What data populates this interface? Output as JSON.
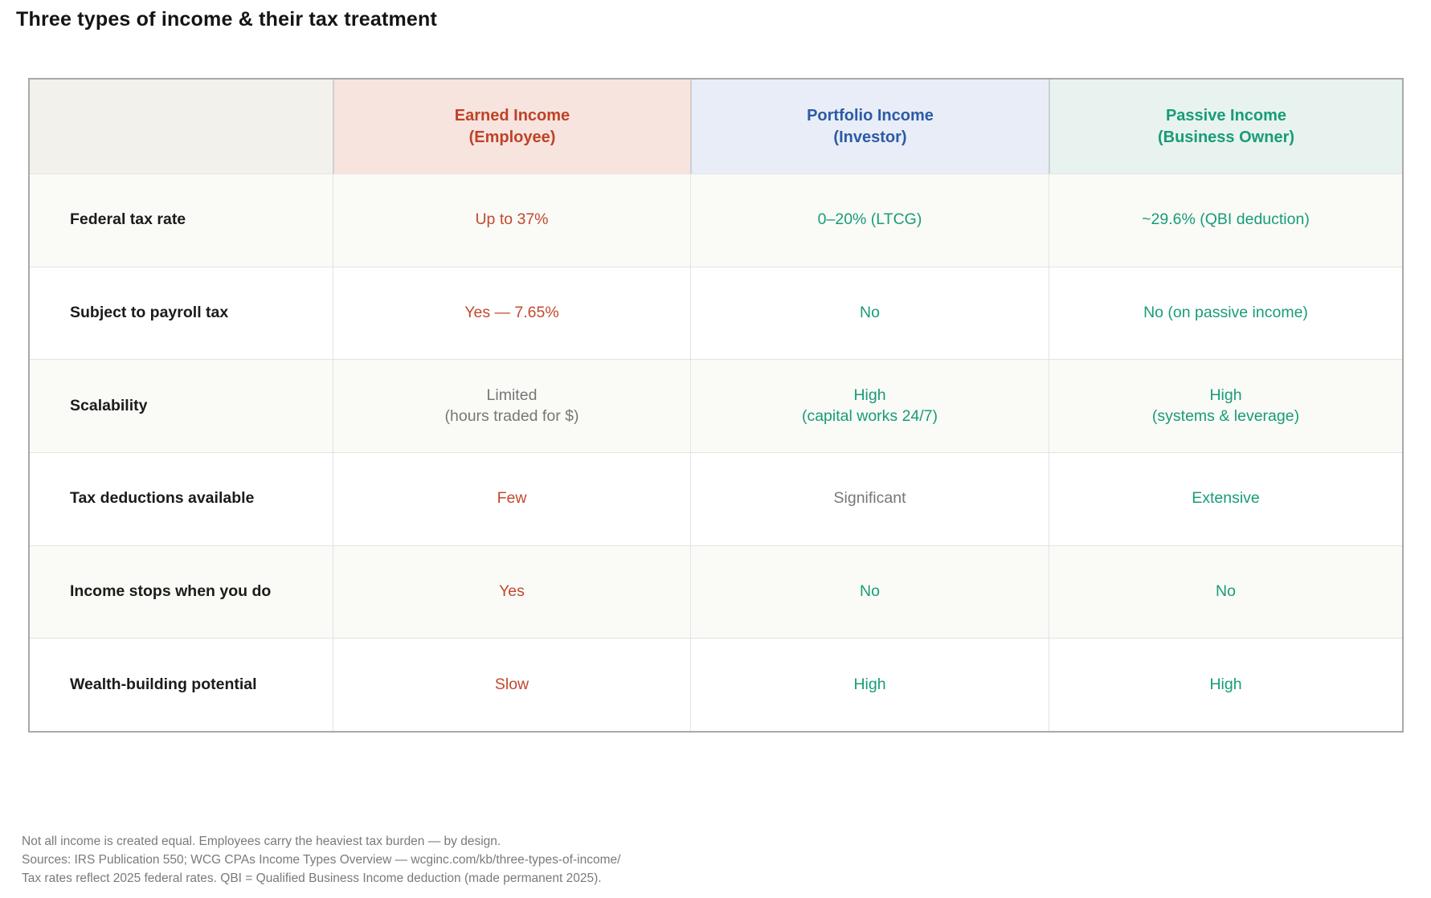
{
  "title": "Three types of income & their tax treatment",
  "colors": {
    "earned_accent": "#bf4226",
    "earned_bg": "#f7e4df",
    "portfolio_accent": "#2b5ba6",
    "portfolio_bg": "#e9edf7",
    "passive_accent": "#189c77",
    "passive_bg": "#e8f3ef",
    "negative": "#c1492e",
    "positive": "#189c77",
    "neutral": "#777777",
    "corner_bg": "#f2f1eb",
    "stripe_bg": "#fafaf7"
  },
  "chart_data": {
    "type": "table",
    "title": "Three types of income & their tax treatment",
    "header": {
      "blank": "",
      "cols": [
        {
          "label": "Earned Income\n(Employee)"
        },
        {
          "label": "Portfolio Income\n(Investor)"
        },
        {
          "label": "Passive Income\n(Business Owner)"
        }
      ]
    },
    "rows": [
      {
        "label": "Federal tax rate",
        "cells": [
          {
            "text": "Up to 37%",
            "tone": "negative"
          },
          {
            "text": "0–20% (LTCG)",
            "tone": "positive"
          },
          {
            "text": "~29.6% (QBI deduction)",
            "tone": "positive"
          }
        ]
      },
      {
        "label": "Subject to payroll tax",
        "cells": [
          {
            "text": "Yes — 7.65%",
            "tone": "negative"
          },
          {
            "text": "No",
            "tone": "positive"
          },
          {
            "text": "No (on passive income)",
            "tone": "positive"
          }
        ]
      },
      {
        "label": "Scalability",
        "cells": [
          {
            "text": "Limited\n(hours traded for $)",
            "tone": "neutral"
          },
          {
            "text": "High\n(capital works 24/7)",
            "tone": "positive"
          },
          {
            "text": "High\n(systems & leverage)",
            "tone": "positive"
          }
        ]
      },
      {
        "label": "Tax deductions available",
        "cells": [
          {
            "text": "Few",
            "tone": "negative"
          },
          {
            "text": "Significant",
            "tone": "neutral"
          },
          {
            "text": "Extensive",
            "tone": "positive"
          }
        ]
      },
      {
        "label": "Income stops when you do",
        "cells": [
          {
            "text": "Yes",
            "tone": "negative"
          },
          {
            "text": "No",
            "tone": "positive"
          },
          {
            "text": "No",
            "tone": "positive"
          }
        ]
      },
      {
        "label": "Wealth-building potential",
        "cells": [
          {
            "text": "Slow",
            "tone": "negative"
          },
          {
            "text": "High",
            "tone": "positive"
          },
          {
            "text": "High",
            "tone": "positive"
          }
        ]
      }
    ],
    "notes": [
      "Not all income is created equal. Employees carry the heaviest tax burden — by design.",
      "Sources: IRS Publication 550; WCG CPAs Income Types Overview — wcginc.com/kb/three-types-of-income/",
      "Tax rates reflect 2025 federal rates. QBI = Qualified Business Income deduction (made permanent 2025)."
    ]
  }
}
